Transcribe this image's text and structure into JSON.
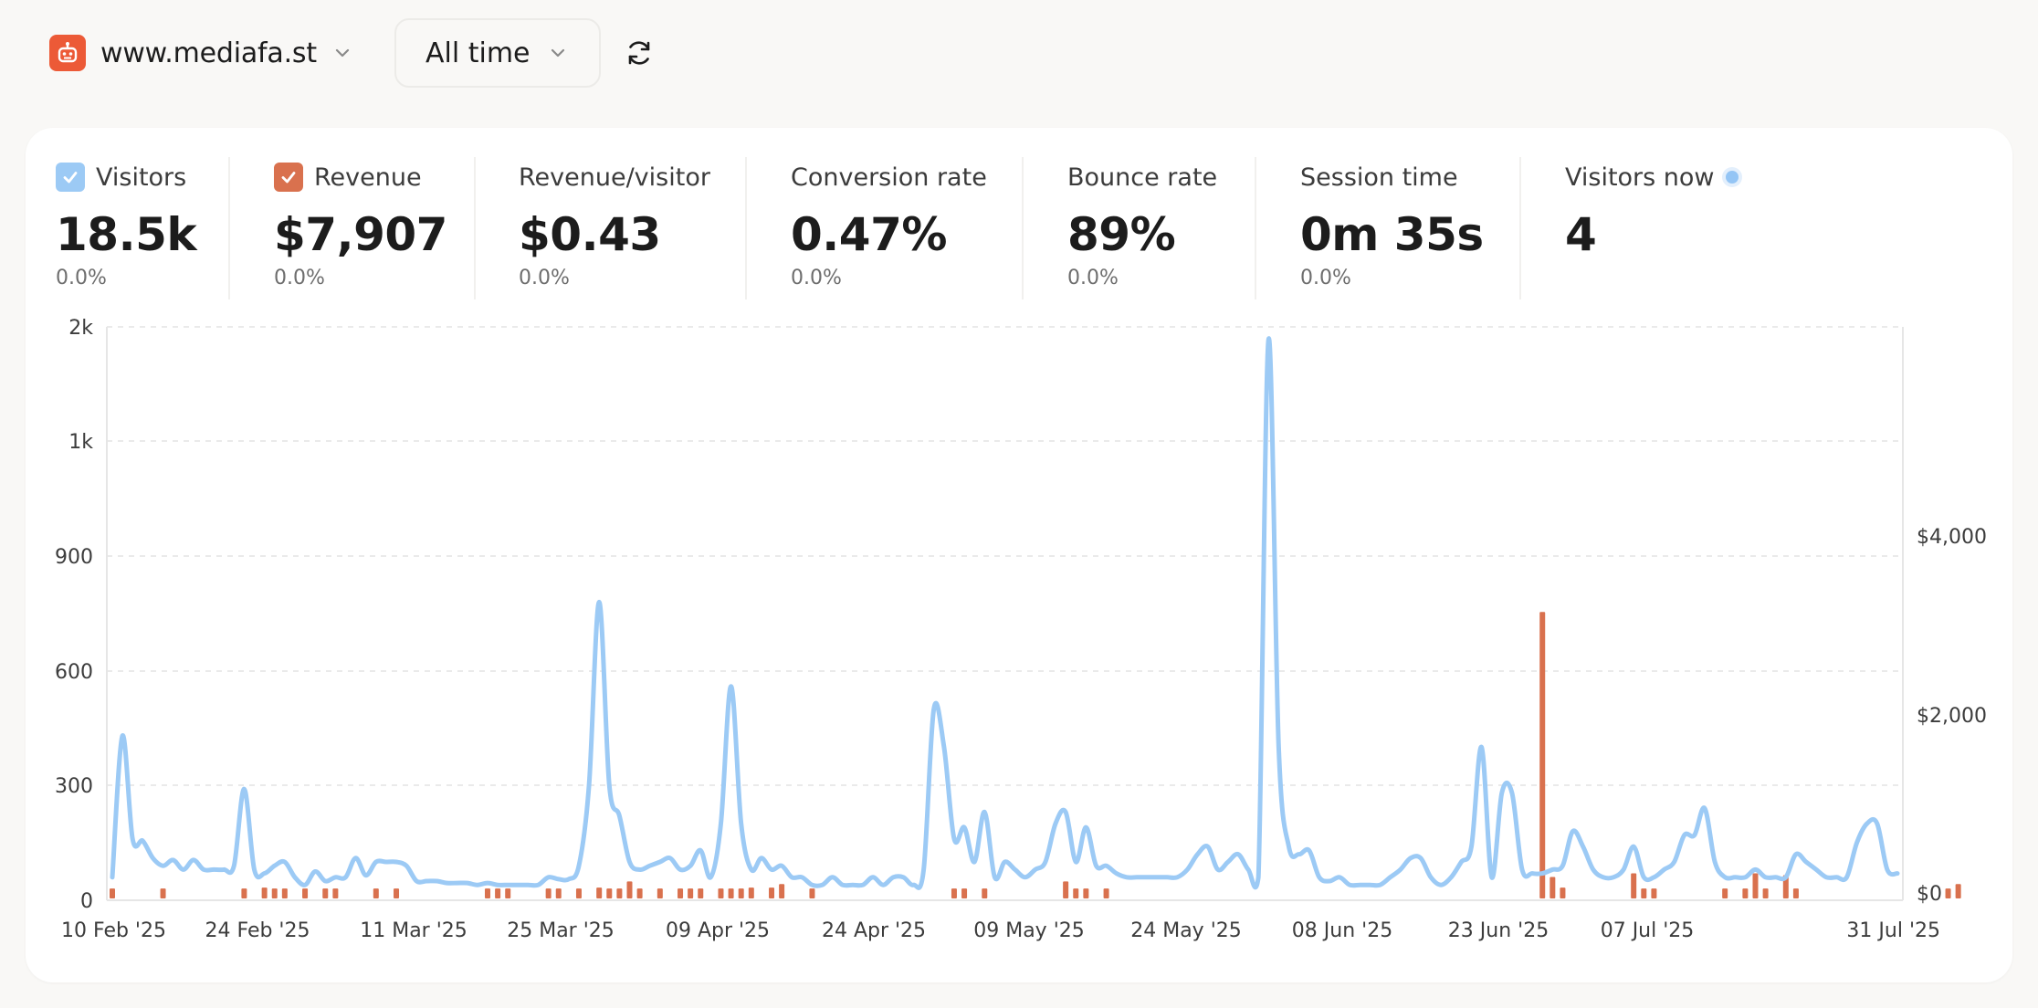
{
  "header": {
    "site_name": "www.mediafa.st",
    "site_logo_icon": "robot-icon",
    "range_label": "All time",
    "refresh_icon": "refresh-icon"
  },
  "metrics": [
    {
      "label": "Visitors",
      "value": "18.5k",
      "change": "0.0%",
      "checkbox": true,
      "checkbox_color": "#9ccaf5"
    },
    {
      "label": "Revenue",
      "value": "$7,907",
      "change": "0.0%",
      "checkbox": true,
      "checkbox_color": "#d9714e"
    },
    {
      "label": "Revenue/visitor",
      "value": "$0.43",
      "change": "0.0%"
    },
    {
      "label": "Conversion rate",
      "value": "0.47%",
      "change": "0.0%"
    },
    {
      "label": "Bounce rate",
      "value": "89%",
      "change": "0.0%"
    },
    {
      "label": "Session time",
      "value": "0m 35s",
      "change": "0.0%"
    },
    {
      "label": "Visitors now",
      "value": "4",
      "live": true
    }
  ],
  "colors": {
    "visitors_line": "#9ccaf5",
    "revenue_bar": "#d9714e",
    "brand": "#ec5a37"
  },
  "chart_data": {
    "type": "line",
    "y_left_ticks": [
      "0",
      "300",
      "600",
      "900",
      "1k",
      "2k"
    ],
    "y_right_ticks": [
      "$0",
      "$2,000",
      "$4,000"
    ],
    "x_ticks": [
      "10 Feb '25",
      "24 Feb '25",
      "11 Mar '25",
      "25 Mar '25",
      "09 Apr '25",
      "24 Apr '25",
      "09 May '25",
      "24 May '25",
      "08 Jun '25",
      "23 Jun '25",
      "07 Jul '25",
      "31 Jul '25"
    ],
    "x_range": [
      "10 Feb '25",
      "31 Jul '25"
    ],
    "grid": true,
    "series": [
      {
        "name": "Visitors",
        "axis": "left",
        "values": [
          60,
          430,
          160,
          155,
          110,
          90,
          105,
          80,
          105,
          80,
          80,
          80,
          90,
          290,
          80,
          70,
          90,
          100,
          60,
          40,
          75,
          50,
          60,
          60,
          110,
          65,
          100,
          100,
          100,
          90,
          50,
          50,
          50,
          45,
          45,
          45,
          40,
          45,
          40,
          40,
          40,
          40,
          40,
          60,
          55,
          55,
          90,
          300,
          780,
          300,
          220,
          100,
          80,
          90,
          100,
          110,
          80,
          90,
          130,
          60,
          200,
          560,
          200,
          80,
          110,
          80,
          90,
          60,
          60,
          40,
          40,
          60,
          40,
          40,
          40,
          60,
          40,
          60,
          60,
          40,
          80,
          500,
          400,
          160,
          190,
          100,
          230,
          60,
          100,
          80,
          60,
          80,
          100,
          200,
          230,
          100,
          190,
          90,
          90,
          70,
          60,
          60,
          60,
          60,
          60,
          60,
          80,
          120,
          140,
          80,
          100,
          120,
          80,
          60,
          1890,
          400,
          140,
          120,
          130,
          60,
          50,
          60,
          40,
          40,
          40,
          40,
          60,
          80,
          110,
          110,
          60,
          40,
          60,
          100,
          140,
          400,
          60,
          280,
          280,
          80,
          70,
          70,
          80,
          90,
          180,
          140,
          80,
          60,
          60,
          80,
          140,
          60,
          60,
          80,
          100,
          170,
          170,
          240,
          100,
          60,
          60,
          60,
          80,
          60,
          60,
          60,
          120,
          100,
          80,
          60,
          60,
          60,
          150,
          200,
          200,
          80,
          70
        ]
      },
      {
        "name": "Revenue",
        "axis": "right",
        "values": [
          50,
          0,
          0,
          0,
          0,
          50,
          0,
          0,
          0,
          0,
          0,
          0,
          0,
          50,
          0,
          60,
          50,
          50,
          0,
          50,
          0,
          50,
          50,
          0,
          0,
          0,
          50,
          0,
          50,
          0,
          0,
          0,
          0,
          0,
          0,
          0,
          0,
          50,
          50,
          50,
          0,
          0,
          0,
          50,
          50,
          0,
          50,
          0,
          60,
          50,
          50,
          130,
          50,
          0,
          50,
          0,
          50,
          50,
          50,
          0,
          50,
          50,
          50,
          60,
          0,
          60,
          100,
          0,
          0,
          50,
          0,
          0,
          0,
          0,
          0,
          0,
          0,
          0,
          0,
          0,
          0,
          0,
          0,
          50,
          50,
          0,
          50,
          0,
          0,
          0,
          0,
          0,
          0,
          0,
          130,
          50,
          50,
          0,
          50,
          0,
          0,
          0,
          0,
          0,
          0,
          0,
          0,
          0,
          0,
          0,
          0,
          0,
          0,
          0,
          0,
          0,
          0,
          0,
          0,
          0,
          0,
          0,
          0,
          0,
          0,
          0,
          0,
          0,
          0,
          0,
          0,
          0,
          0,
          0,
          0,
          0,
          0,
          0,
          0,
          0,
          0,
          3150,
          180,
          60,
          0,
          0,
          0,
          0,
          0,
          0,
          220,
          50,
          50,
          0,
          0,
          0,
          0,
          0,
          0,
          50,
          0,
          50,
          220,
          50,
          0,
          200,
          50,
          0,
          0,
          0,
          0,
          0,
          0,
          0,
          0,
          0,
          0,
          0,
          0,
          0,
          0,
          50,
          100
        ]
      }
    ],
    "y_left_range": [
      0,
      2000
    ],
    "y_right_range": [
      0,
      4000
    ]
  }
}
